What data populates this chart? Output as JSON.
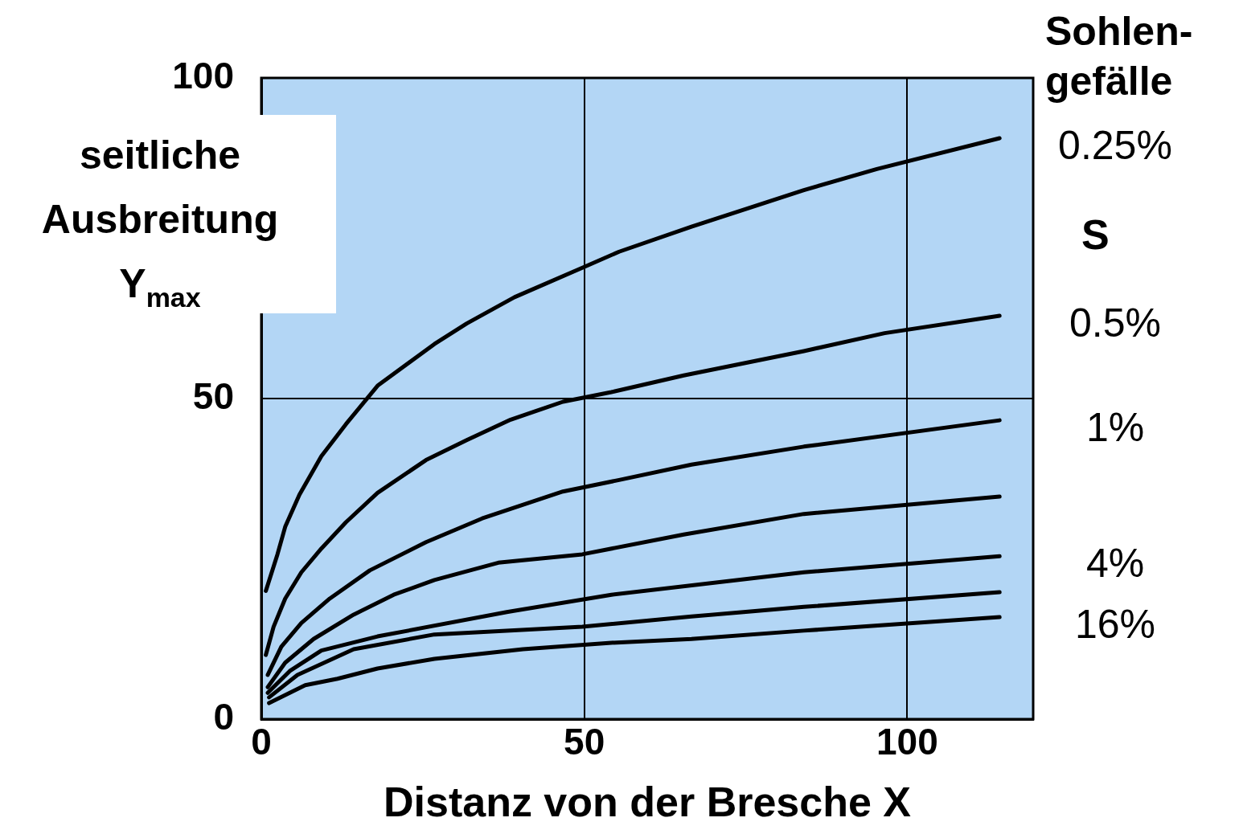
{
  "chart_data": {
    "type": "line",
    "xlabel": "Distanz von der Bresche X",
    "ylabel": "seitliche Ausbreitung Y$_{max}$",
    "legend_title": "Sohlen-\ngefälle",
    "annotations": [
      "S"
    ],
    "xlim": [
      0,
      119.5
    ],
    "xticks": [
      0,
      50,
      100
    ],
    "ylim": [
      0,
      100
    ],
    "yticks": [
      0,
      50,
      100
    ],
    "grid": true,
    "legend": false,
    "marker": "none",
    "line_style": "solid",
    "series": [
      {
        "name": "0.25%",
        "color": "#000000",
        "x": [
          0.7,
          2.5,
          3.7,
          5.9,
          9.3,
          13.1,
          18,
          26.8,
          31.8,
          39.2,
          49.7,
          55.4,
          66.6,
          84,
          95.3,
          114.3
        ],
        "values": [
          20,
          25.7,
          30,
          35,
          41,
          46,
          52,
          58.5,
          61.7,
          65.8,
          70.4,
          72.9,
          76.8,
          82.5,
          85.8,
          90.6
        ]
      },
      {
        "name": "0.5%",
        "color": "#000000",
        "x": [
          0.7,
          1.9,
          3.7,
          6.2,
          9.3,
          13.1,
          18,
          25.5,
          31.8,
          38.6,
          46.7,
          54.2,
          65.4,
          84,
          96.5,
          114.3
        ],
        "values": [
          10,
          14.4,
          18.8,
          22.9,
          26.6,
          30.7,
          35.3,
          40.4,
          43.5,
          46.7,
          49.5,
          51,
          53.6,
          57.4,
          60.2,
          62.9
        ]
      },
      {
        "name": "1%",
        "color": "#000000",
        "x": [
          1,
          3.1,
          6.2,
          10.6,
          16.8,
          25.5,
          34.2,
          46.7,
          55.4,
          66.6,
          84,
          114.3
        ],
        "values": [
          6.9,
          11.3,
          15,
          18.8,
          23.2,
          27.6,
          31.3,
          35.5,
          37.3,
          39.7,
          42.5,
          46.6
        ]
      },
      {
        "color": "#000000",
        "x": [
          1,
          3.7,
          8.1,
          14.3,
          20.5,
          26.8,
          36.7,
          49.7,
          65.4,
          84,
          114.3
        ],
        "values": [
          5,
          8.8,
          12.5,
          16.3,
          19.4,
          21.7,
          24.4,
          25.7,
          28.8,
          32,
          34.7
        ]
      },
      {
        "name": "4%",
        "color": "#000000",
        "x": [
          1,
          4.4,
          9.3,
          18,
          38,
          54.2,
          84,
          114.3
        ],
        "values": [
          4.1,
          7.5,
          10.7,
          12.9,
          16.7,
          19.4,
          22.9,
          25.4
        ]
      },
      {
        "color": "#000000",
        "x": [
          1.2,
          5.6,
          14.3,
          26.8,
          49.7,
          66.6,
          84,
          114.3
        ],
        "values": [
          3.4,
          6.9,
          10.9,
          13.2,
          14.4,
          16,
          17.5,
          19.8
        ]
      },
      {
        "name": "16%",
        "color": "#000000",
        "x": [
          1.2,
          6.8,
          11.8,
          18,
          26.8,
          40.5,
          54.2,
          66.6,
          84,
          114.3
        ],
        "values": [
          2.5,
          5.3,
          6.3,
          7.9,
          9.4,
          10.9,
          11.9,
          12.5,
          13.8,
          15.9
        ]
      }
    ]
  }
}
